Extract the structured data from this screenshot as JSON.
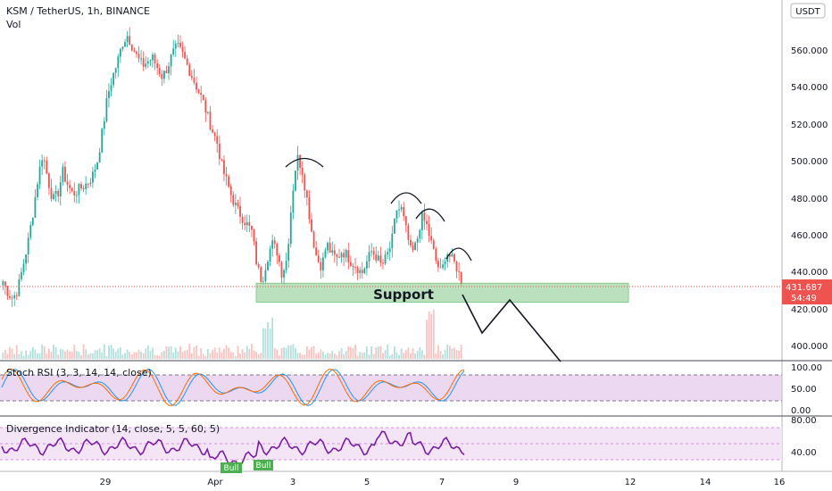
{
  "header": {
    "symbol_title": "KSM / TetherUS, 1h, BINANCE",
    "volume_label": "Vol",
    "currency_button": "USDT"
  },
  "price_panel": {
    "y_ticks": [
      "560.000",
      "540.000",
      "520.000",
      "500.000",
      "480.000",
      "460.000",
      "440.000",
      "420.000",
      "400.000"
    ],
    "last_price": "431.687",
    "countdown": "54:49",
    "annotation": "Support"
  },
  "stoch_panel": {
    "title": "Stoch RSI (3, 3, 14, 14, close)",
    "y_ticks": [
      "100.00",
      "50.00",
      "0.00"
    ]
  },
  "divergence_panel": {
    "title": "Divergence Indicator (14, close, 5, 5, 60, 5)",
    "y_ticks": [
      "80.00",
      "40.00"
    ],
    "bull_labels": [
      "Bull",
      "Bull"
    ]
  },
  "time_axis": {
    "labels": [
      "29",
      "Apr",
      "3",
      "5",
      "7",
      "9",
      "12",
      "14",
      "16"
    ]
  },
  "colors": {
    "up": "#26a69a",
    "down": "#ef5350",
    "support_fill": "#a5d6a7",
    "stoch_band": "#e1bee7",
    "div_band": "#f3e5f5",
    "div_line": "#7b1fa2",
    "stoch_k": "#2196f3",
    "stoch_d": "#ff6d00",
    "price_badge": "#ef5350"
  },
  "chart_data": {
    "type": "line",
    "title": "KSM / TetherUS, 1h, BINANCE",
    "xlabel": "",
    "ylabel": "",
    "ylim": [
      392,
      574
    ],
    "x_labels": [
      "29",
      "Apr",
      "3",
      "5",
      "7",
      "9",
      "12",
      "14",
      "16"
    ],
    "series": [
      {
        "values": [
          432,
          426,
          423,
          428,
          440,
          452,
          468,
          486,
          500,
          486,
          475,
          478,
          490,
          483,
          478,
          480,
          482,
          484,
          488,
          496,
          512,
          530,
          540,
          548,
          558,
          562,
          556,
          550,
          546,
          548,
          550,
          545,
          540,
          545,
          552,
          556,
          552,
          546,
          540,
          534,
          528,
          520,
          512,
          505,
          492,
          484,
          476,
          470,
          466,
          462,
          458,
          440,
          432,
          444,
          452,
          448,
          436,
          444,
          476,
          498,
          492,
          476,
          458,
          444,
          440,
          452,
          446,
          444,
          448,
          446,
          442,
          440,
          436,
          442,
          448,
          445,
          440,
          445,
          452,
          470,
          470,
          458,
          446,
          452,
          466,
          462,
          452,
          442,
          436,
          448,
          444,
          440,
          432
        ]
      }
    ],
    "support_zone": {
      "from": 421,
      "to": 431
    },
    "projection_path": [
      432,
      410,
      424,
      386
    ]
  }
}
